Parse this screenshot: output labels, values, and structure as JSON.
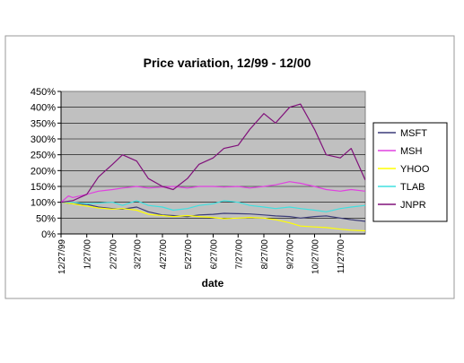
{
  "chart_data": {
    "type": "line",
    "title": "Price variation, 12/99 - 12/00",
    "xlabel": "date",
    "ylabel": "",
    "ylim": [
      0,
      450
    ],
    "y_tick_values": [
      0,
      50,
      100,
      150,
      200,
      250,
      300,
      350,
      400,
      450
    ],
    "y_tick_labels": [
      "0%",
      "50%",
      "100%",
      "150%",
      "200%",
      "250%",
      "300%",
      "350%",
      "400%",
      "450%"
    ],
    "x_tick_labels": [
      "12/27/99",
      "1/27/00",
      "2/27/00",
      "3/27/00",
      "4/27/00",
      "5/27/00",
      "6/27/00",
      "7/27/00",
      "8/27/00",
      "9/27/00",
      "10/27/00",
      "11/27/00"
    ],
    "x_range": [
      "12/27/99",
      "12/27/00"
    ],
    "grid": "horizontal",
    "plot_background": "#c0c0c0",
    "legend_position": "right",
    "series": [
      {
        "name": "MSFT",
        "color": "#3c3c78",
        "points": [
          [
            "12/27/99",
            100
          ],
          [
            "1/10/00",
            95
          ],
          [
            "1/27/00",
            93
          ],
          [
            "2/10/00",
            85
          ],
          [
            "2/27/00",
            80
          ],
          [
            "3/10/00",
            78
          ],
          [
            "3/27/00",
            85
          ],
          [
            "4/10/00",
            70
          ],
          [
            "4/27/00",
            60
          ],
          [
            "5/10/00",
            58
          ],
          [
            "5/27/00",
            55
          ],
          [
            "6/10/00",
            60
          ],
          [
            "6/27/00",
            62
          ],
          [
            "7/10/00",
            65
          ],
          [
            "7/27/00",
            64
          ],
          [
            "8/10/00",
            63
          ],
          [
            "8/27/00",
            60
          ],
          [
            "9/10/00",
            57
          ],
          [
            "9/27/00",
            55
          ],
          [
            "10/10/00",
            50
          ],
          [
            "10/27/00",
            55
          ],
          [
            "11/10/00",
            57
          ],
          [
            "11/27/00",
            50
          ],
          [
            "12/10/00",
            45
          ],
          [
            "12/27/00",
            40
          ]
        ]
      },
      {
        "name": "MSH",
        "color": "#e040e0",
        "points": [
          [
            "12/27/99",
            100
          ],
          [
            "1/5/00",
            120
          ],
          [
            "1/10/00",
            115
          ],
          [
            "1/27/00",
            125
          ],
          [
            "2/10/00",
            135
          ],
          [
            "2/27/00",
            140
          ],
          [
            "3/10/00",
            145
          ],
          [
            "3/27/00",
            150
          ],
          [
            "4/10/00",
            145
          ],
          [
            "4/27/00",
            148
          ],
          [
            "5/10/00",
            150
          ],
          [
            "5/27/00",
            145
          ],
          [
            "6/10/00",
            150
          ],
          [
            "6/27/00",
            150
          ],
          [
            "7/10/00",
            148
          ],
          [
            "7/27/00",
            150
          ],
          [
            "8/10/00",
            145
          ],
          [
            "8/27/00",
            150
          ],
          [
            "9/10/00",
            155
          ],
          [
            "9/27/00",
            165
          ],
          [
            "10/10/00",
            160
          ],
          [
            "10/27/00",
            150
          ],
          [
            "11/10/00",
            140
          ],
          [
            "11/27/00",
            135
          ],
          [
            "12/10/00",
            140
          ],
          [
            "12/27/00",
            135
          ]
        ]
      },
      {
        "name": "YHOO",
        "color": "#ffff00",
        "points": [
          [
            "12/27/99",
            100
          ],
          [
            "1/10/00",
            95
          ],
          [
            "1/27/00",
            88
          ],
          [
            "2/10/00",
            82
          ],
          [
            "2/27/00",
            78
          ],
          [
            "3/10/00",
            80
          ],
          [
            "3/27/00",
            75
          ],
          [
            "4/10/00",
            62
          ],
          [
            "4/27/00",
            58
          ],
          [
            "5/10/00",
            55
          ],
          [
            "5/27/00",
            58
          ],
          [
            "6/10/00",
            55
          ],
          [
            "6/27/00",
            52
          ],
          [
            "7/10/00",
            48
          ],
          [
            "7/27/00",
            50
          ],
          [
            "8/10/00",
            52
          ],
          [
            "8/27/00",
            50
          ],
          [
            "9/10/00",
            45
          ],
          [
            "9/27/00",
            35
          ],
          [
            "10/10/00",
            25
          ],
          [
            "10/27/00",
            22
          ],
          [
            "11/10/00",
            20
          ],
          [
            "11/27/00",
            15
          ],
          [
            "12/10/00",
            12
          ],
          [
            "12/27/00",
            10
          ]
        ]
      },
      {
        "name": "TLAB",
        "color": "#40e0e0",
        "points": [
          [
            "12/27/99",
            100
          ],
          [
            "1/10/00",
            100
          ],
          [
            "1/27/00",
            95
          ],
          [
            "2/10/00",
            97
          ],
          [
            "2/27/00",
            100
          ],
          [
            "3/10/00",
            90
          ],
          [
            "3/27/00",
            105
          ],
          [
            "4/10/00",
            90
          ],
          [
            "4/27/00",
            85
          ],
          [
            "5/10/00",
            75
          ],
          [
            "5/27/00",
            80
          ],
          [
            "6/10/00",
            90
          ],
          [
            "6/27/00",
            95
          ],
          [
            "7/10/00",
            105
          ],
          [
            "7/27/00",
            100
          ],
          [
            "8/10/00",
            90
          ],
          [
            "8/27/00",
            85
          ],
          [
            "9/10/00",
            80
          ],
          [
            "9/27/00",
            85
          ],
          [
            "10/10/00",
            80
          ],
          [
            "10/27/00",
            75
          ],
          [
            "11/10/00",
            70
          ],
          [
            "11/27/00",
            80
          ],
          [
            "12/10/00",
            85
          ],
          [
            "12/27/00",
            90
          ]
        ]
      },
      {
        "name": "JNPR",
        "color": "#80107a",
        "points": [
          [
            "12/27/99",
            100
          ],
          [
            "1/10/00",
            105
          ],
          [
            "1/27/00",
            125
          ],
          [
            "2/10/00",
            180
          ],
          [
            "2/27/00",
            220
          ],
          [
            "3/10/00",
            250
          ],
          [
            "3/27/00",
            230
          ],
          [
            "4/10/00",
            175
          ],
          [
            "4/27/00",
            150
          ],
          [
            "5/10/00",
            140
          ],
          [
            "5/27/00",
            175
          ],
          [
            "6/10/00",
            220
          ],
          [
            "6/27/00",
            240
          ],
          [
            "7/10/00",
            270
          ],
          [
            "7/27/00",
            280
          ],
          [
            "8/10/00",
            330
          ],
          [
            "8/27/00",
            380
          ],
          [
            "9/10/00",
            350
          ],
          [
            "9/27/00",
            400
          ],
          [
            "10/10/00",
            410
          ],
          [
            "10/27/00",
            330
          ],
          [
            "11/10/00",
            250
          ],
          [
            "11/27/00",
            240
          ],
          [
            "12/10/00",
            270
          ],
          [
            "12/27/00",
            170
          ]
        ]
      }
    ]
  }
}
